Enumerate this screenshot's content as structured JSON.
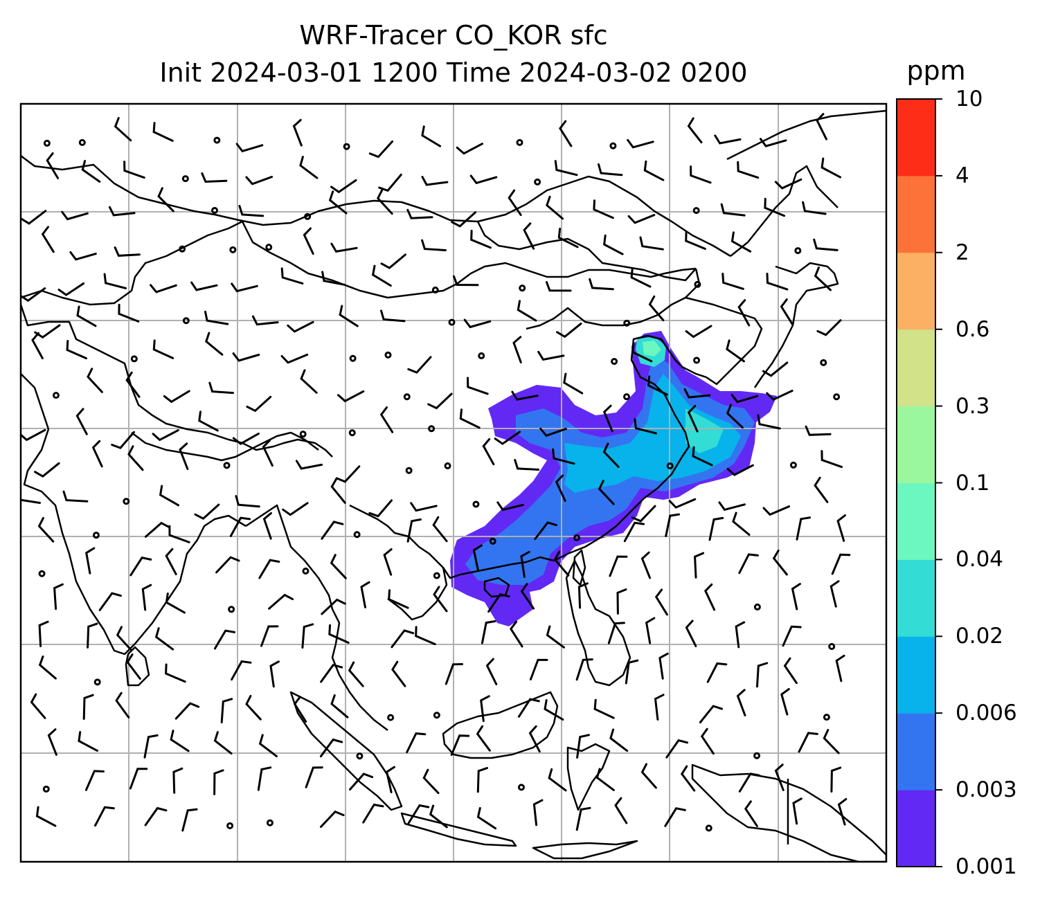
{
  "title": {
    "line1": "WRF-Tracer CO_KOR sfc",
    "line2": "Init 2024-03-01 1200 Time 2024-03-02 0200"
  },
  "colorbar": {
    "unit": "ppm",
    "levels": [
      "0.001",
      "0.003",
      "0.006",
      "0.02",
      "0.04",
      "0.1",
      "0.3",
      "0.6",
      "2",
      "4",
      "10"
    ],
    "colors": [
      "#6229f5",
      "#3375f0",
      "#07b3ea",
      "#33dcd4",
      "#6bf7bf",
      "#9bf79d",
      "#d1e289",
      "#fcb064",
      "#fd7238",
      "#fd2d18"
    ]
  },
  "map": {
    "gridlines": true,
    "coastline_color": "#000000",
    "gridline_color": "#b0b0b0",
    "barb_color": "#000000"
  }
}
